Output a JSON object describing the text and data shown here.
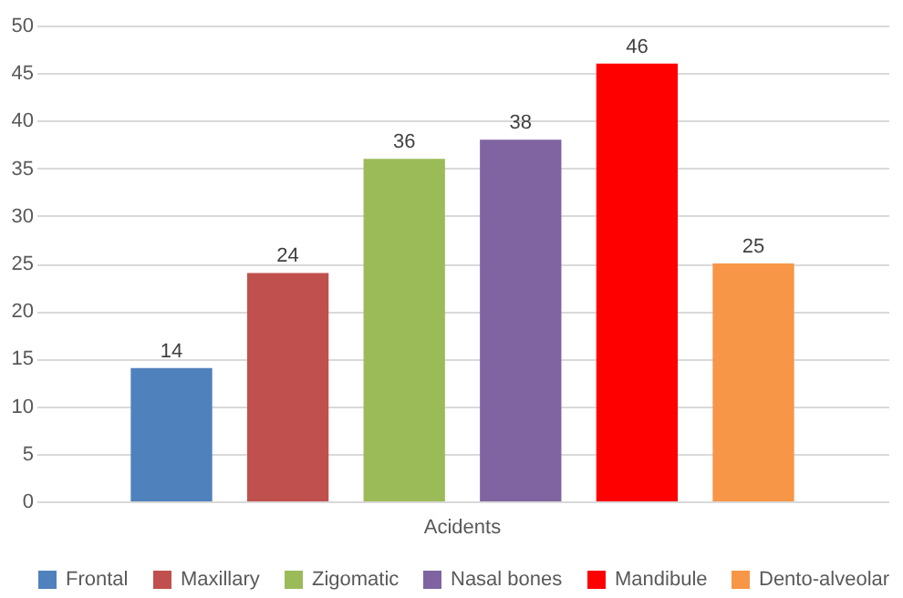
{
  "chart_data": {
    "type": "bar",
    "categories": [
      "Acidents"
    ],
    "series": [
      {
        "name": "Frontal",
        "color": "#4f81bd",
        "values": [
          14
        ]
      },
      {
        "name": "Maxillary",
        "color": "#c0504d",
        "values": [
          24
        ]
      },
      {
        "name": "Zigomatic",
        "color": "#9bbb59",
        "values": [
          36
        ]
      },
      {
        "name": "Nasal bones",
        "color": "#8064a2",
        "values": [
          38
        ]
      },
      {
        "name": "Mandibule",
        "color": "#ff0000",
        "values": [
          46
        ]
      },
      {
        "name": "Dento-alveolar",
        "color": "#f79646",
        "values": [
          25
        ]
      }
    ],
    "ylim": [
      0,
      50
    ],
    "yticks": [
      0,
      5,
      10,
      15,
      20,
      25,
      30,
      35,
      40,
      45,
      50
    ],
    "grid": "y",
    "legend": "bottom",
    "data_labels": true
  }
}
